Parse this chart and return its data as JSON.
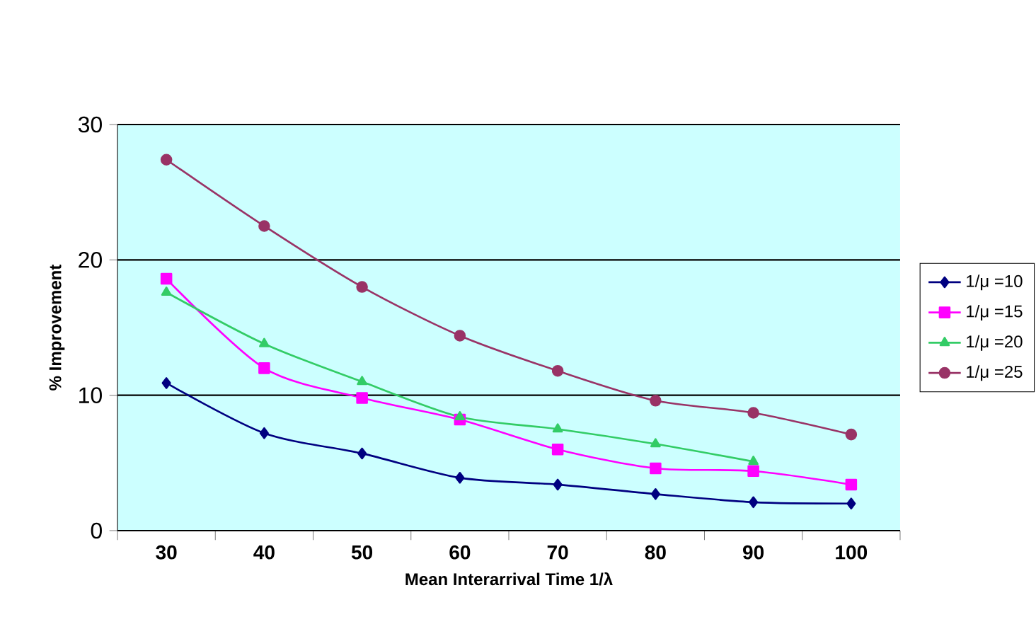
{
  "chart_data": {
    "type": "line",
    "xlabel": "Mean Interarrival Time 1/λ",
    "ylabel": "% Improvement",
    "categories": [
      "30",
      "40",
      "50",
      "60",
      "70",
      "80",
      "90",
      "100"
    ],
    "series": [
      {
        "name": "1/μ =10",
        "color": "#000080",
        "marker": "diamond",
        "values": [
          10.9,
          7.2,
          5.7,
          3.9,
          3.4,
          2.7,
          2.1,
          2.0
        ]
      },
      {
        "name": "1/μ =15",
        "color": "#ff00ff",
        "marker": "square",
        "values": [
          18.6,
          12.0,
          9.8,
          8.2,
          6.0,
          4.6,
          4.4,
          3.4
        ]
      },
      {
        "name": "1/μ =20",
        "color": "#33cc66",
        "marker": "triangle",
        "values": [
          17.6,
          13.8,
          11.0,
          8.4,
          7.5,
          6.4,
          5.1,
          null
        ]
      },
      {
        "name": "1/μ =25",
        "color": "#993366",
        "marker": "circle",
        "values": [
          27.4,
          22.5,
          18.0,
          14.4,
          11.8,
          9.6,
          8.7,
          7.1
        ]
      }
    ],
    "ylim": [
      0,
      30
    ],
    "yticks": [
      0,
      10,
      20,
      30
    ],
    "grid": "y",
    "legend": "right"
  }
}
